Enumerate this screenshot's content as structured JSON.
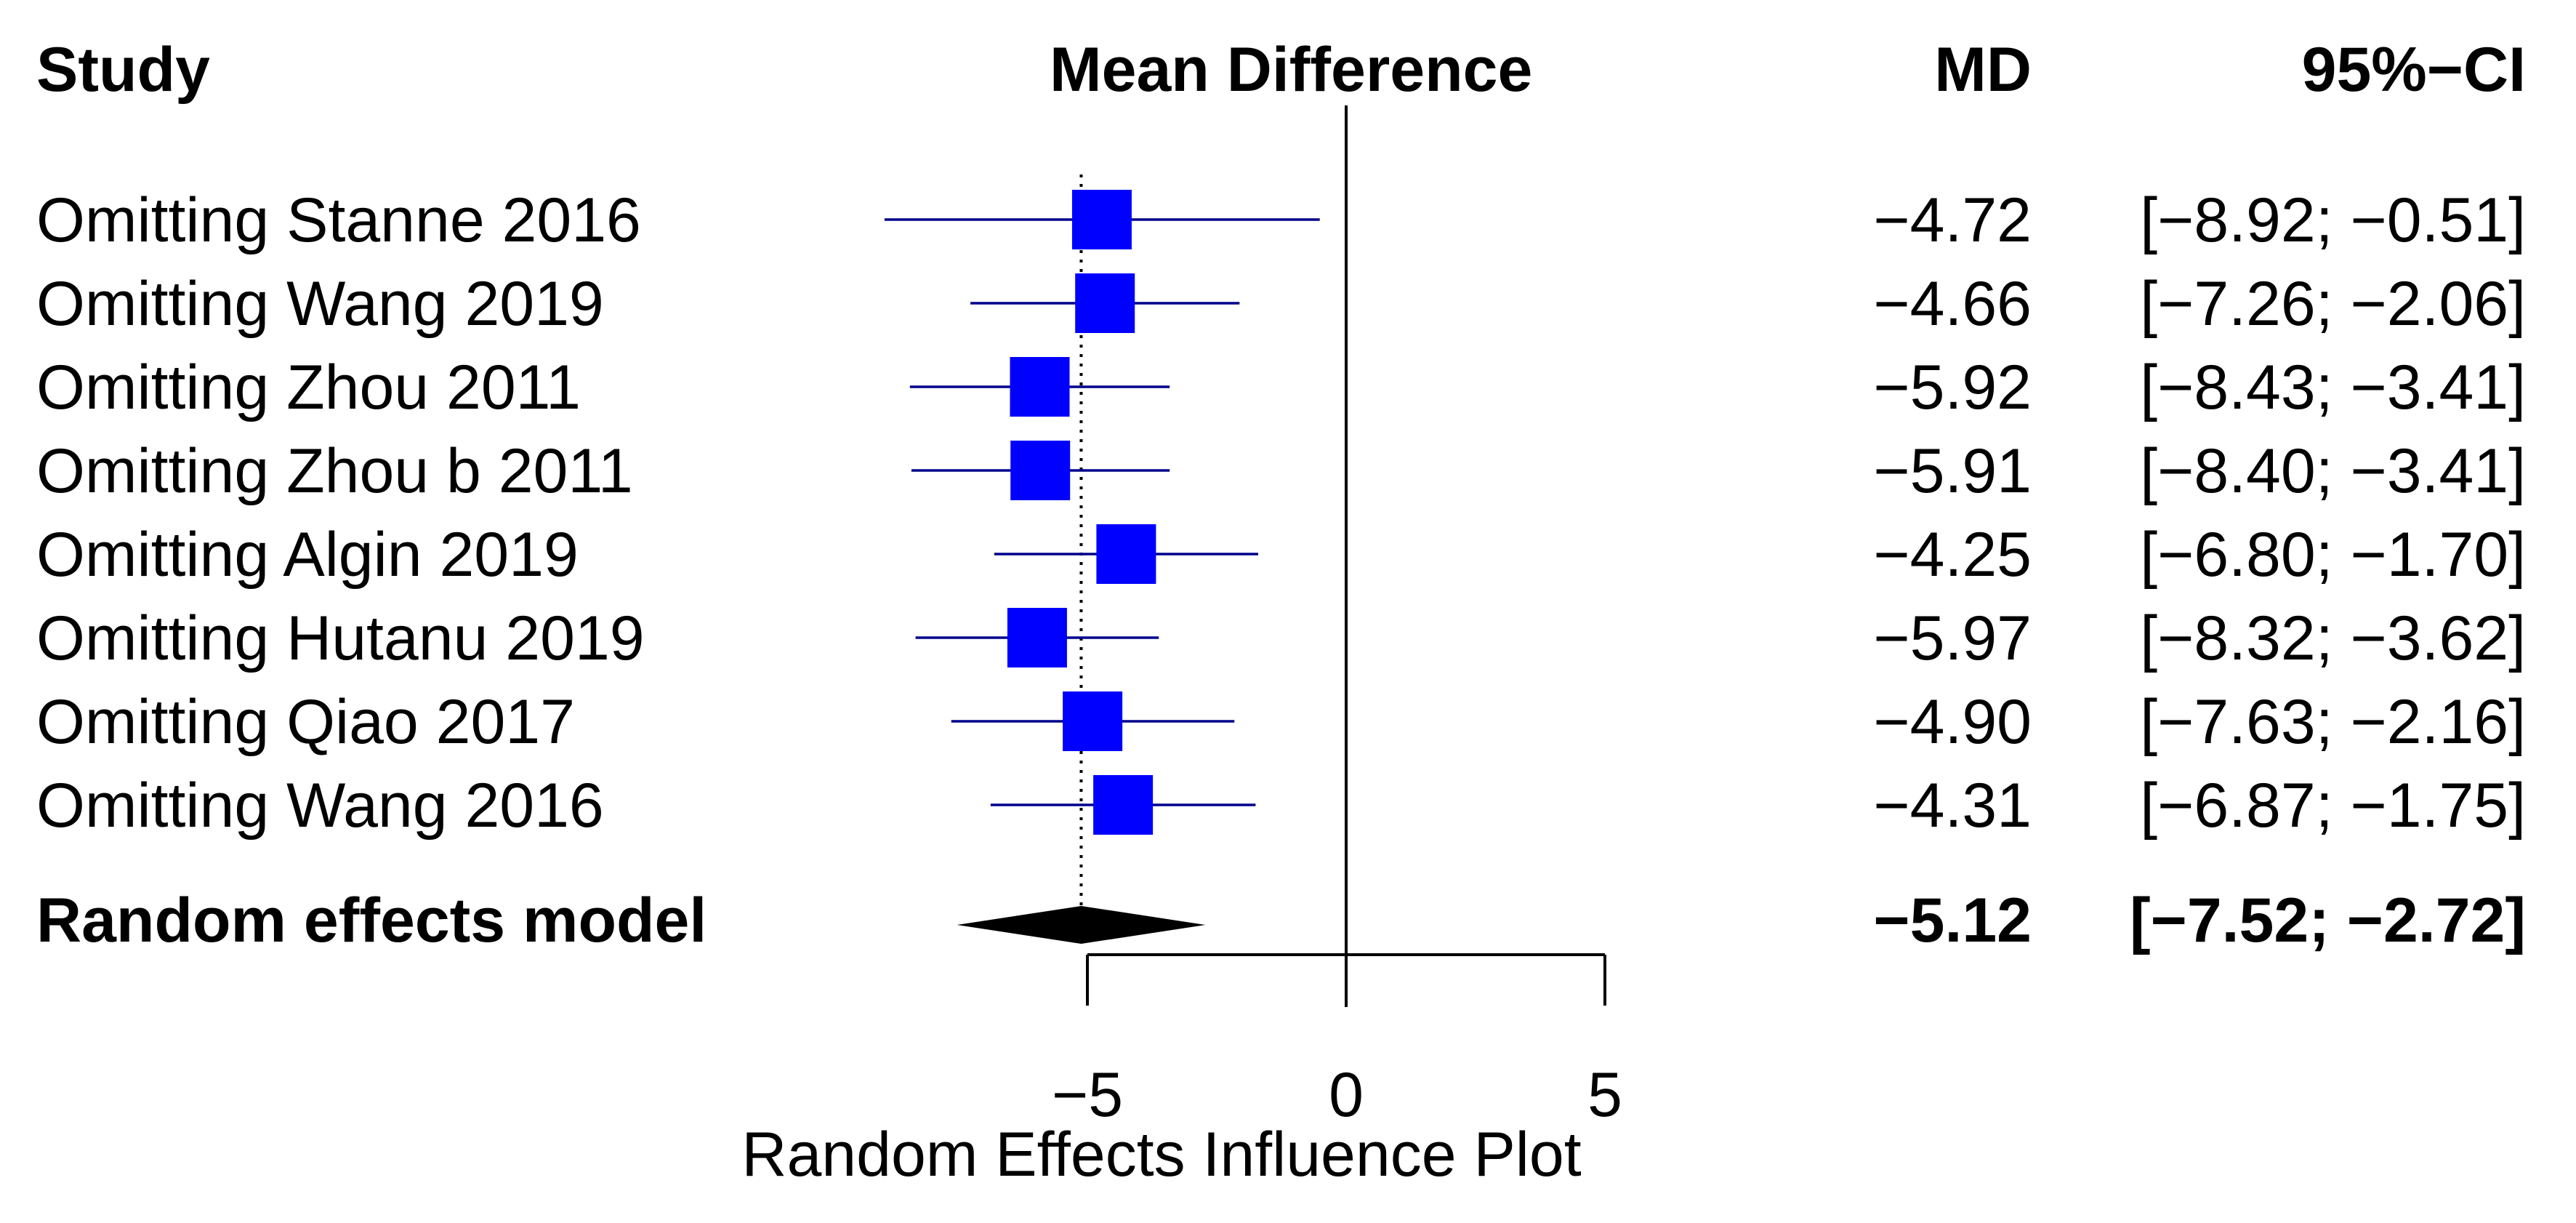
{
  "chart_data": {
    "type": "forest",
    "headers": {
      "study": "Study",
      "effect": "Mean Difference",
      "md": "MD",
      "ci": "95%−CI"
    },
    "studies": [
      {
        "label": "Omitting Stanne 2016",
        "md": -4.72,
        "lower": -8.92,
        "upper": -0.51,
        "md_text": "−4.72",
        "ci_text": "[−8.92; −0.51]"
      },
      {
        "label": "Omitting Wang  2019",
        "md": -4.66,
        "lower": -7.26,
        "upper": -2.06,
        "md_text": "−4.66",
        "ci_text": "[−7.26; −2.06]"
      },
      {
        "label": "Omitting Zhou  2011",
        "md": -5.92,
        "lower": -8.43,
        "upper": -3.41,
        "md_text": "−5.92",
        "ci_text": "[−8.43; −3.41]"
      },
      {
        "label": "Omitting Zhou b 2011",
        "md": -5.91,
        "lower": -8.4,
        "upper": -3.41,
        "md_text": "−5.91",
        "ci_text": "[−8.40; −3.41]"
      },
      {
        "label": "Omitting Algin  2019",
        "md": -4.25,
        "lower": -6.8,
        "upper": -1.7,
        "md_text": "−4.25",
        "ci_text": "[−6.80; −1.70]"
      },
      {
        "label": "Omitting Hutanu  2019",
        "md": -5.97,
        "lower": -8.32,
        "upper": -3.62,
        "md_text": "−5.97",
        "ci_text": "[−8.32; −3.62]"
      },
      {
        "label": "Omitting Qiao  2017",
        "md": -4.9,
        "lower": -7.63,
        "upper": -2.16,
        "md_text": "−4.90",
        "ci_text": "[−7.63; −2.16]"
      },
      {
        "label": "Omitting Wang  2016",
        "md": -4.31,
        "lower": -6.87,
        "upper": -1.75,
        "md_text": "−4.31",
        "ci_text": "[−6.87; −1.75]"
      }
    ],
    "pooled": {
      "label": "Random effects model",
      "md": -5.12,
      "lower": -7.52,
      "upper": -2.72,
      "md_text": "−5.12",
      "ci_text": "[−7.52; −2.72]"
    },
    "x_axis": {
      "ticks": [
        -5,
        0,
        5
      ],
      "tick_labels": [
        "−5",
        "0",
        "5"
      ],
      "range": [
        -5,
        5
      ],
      "xlabel": "Random Effects Influence Plot"
    },
    "reference_line": 0,
    "colors": {
      "marker": "#0000ff",
      "ci": "#00008b",
      "diamond": "#000000"
    }
  }
}
